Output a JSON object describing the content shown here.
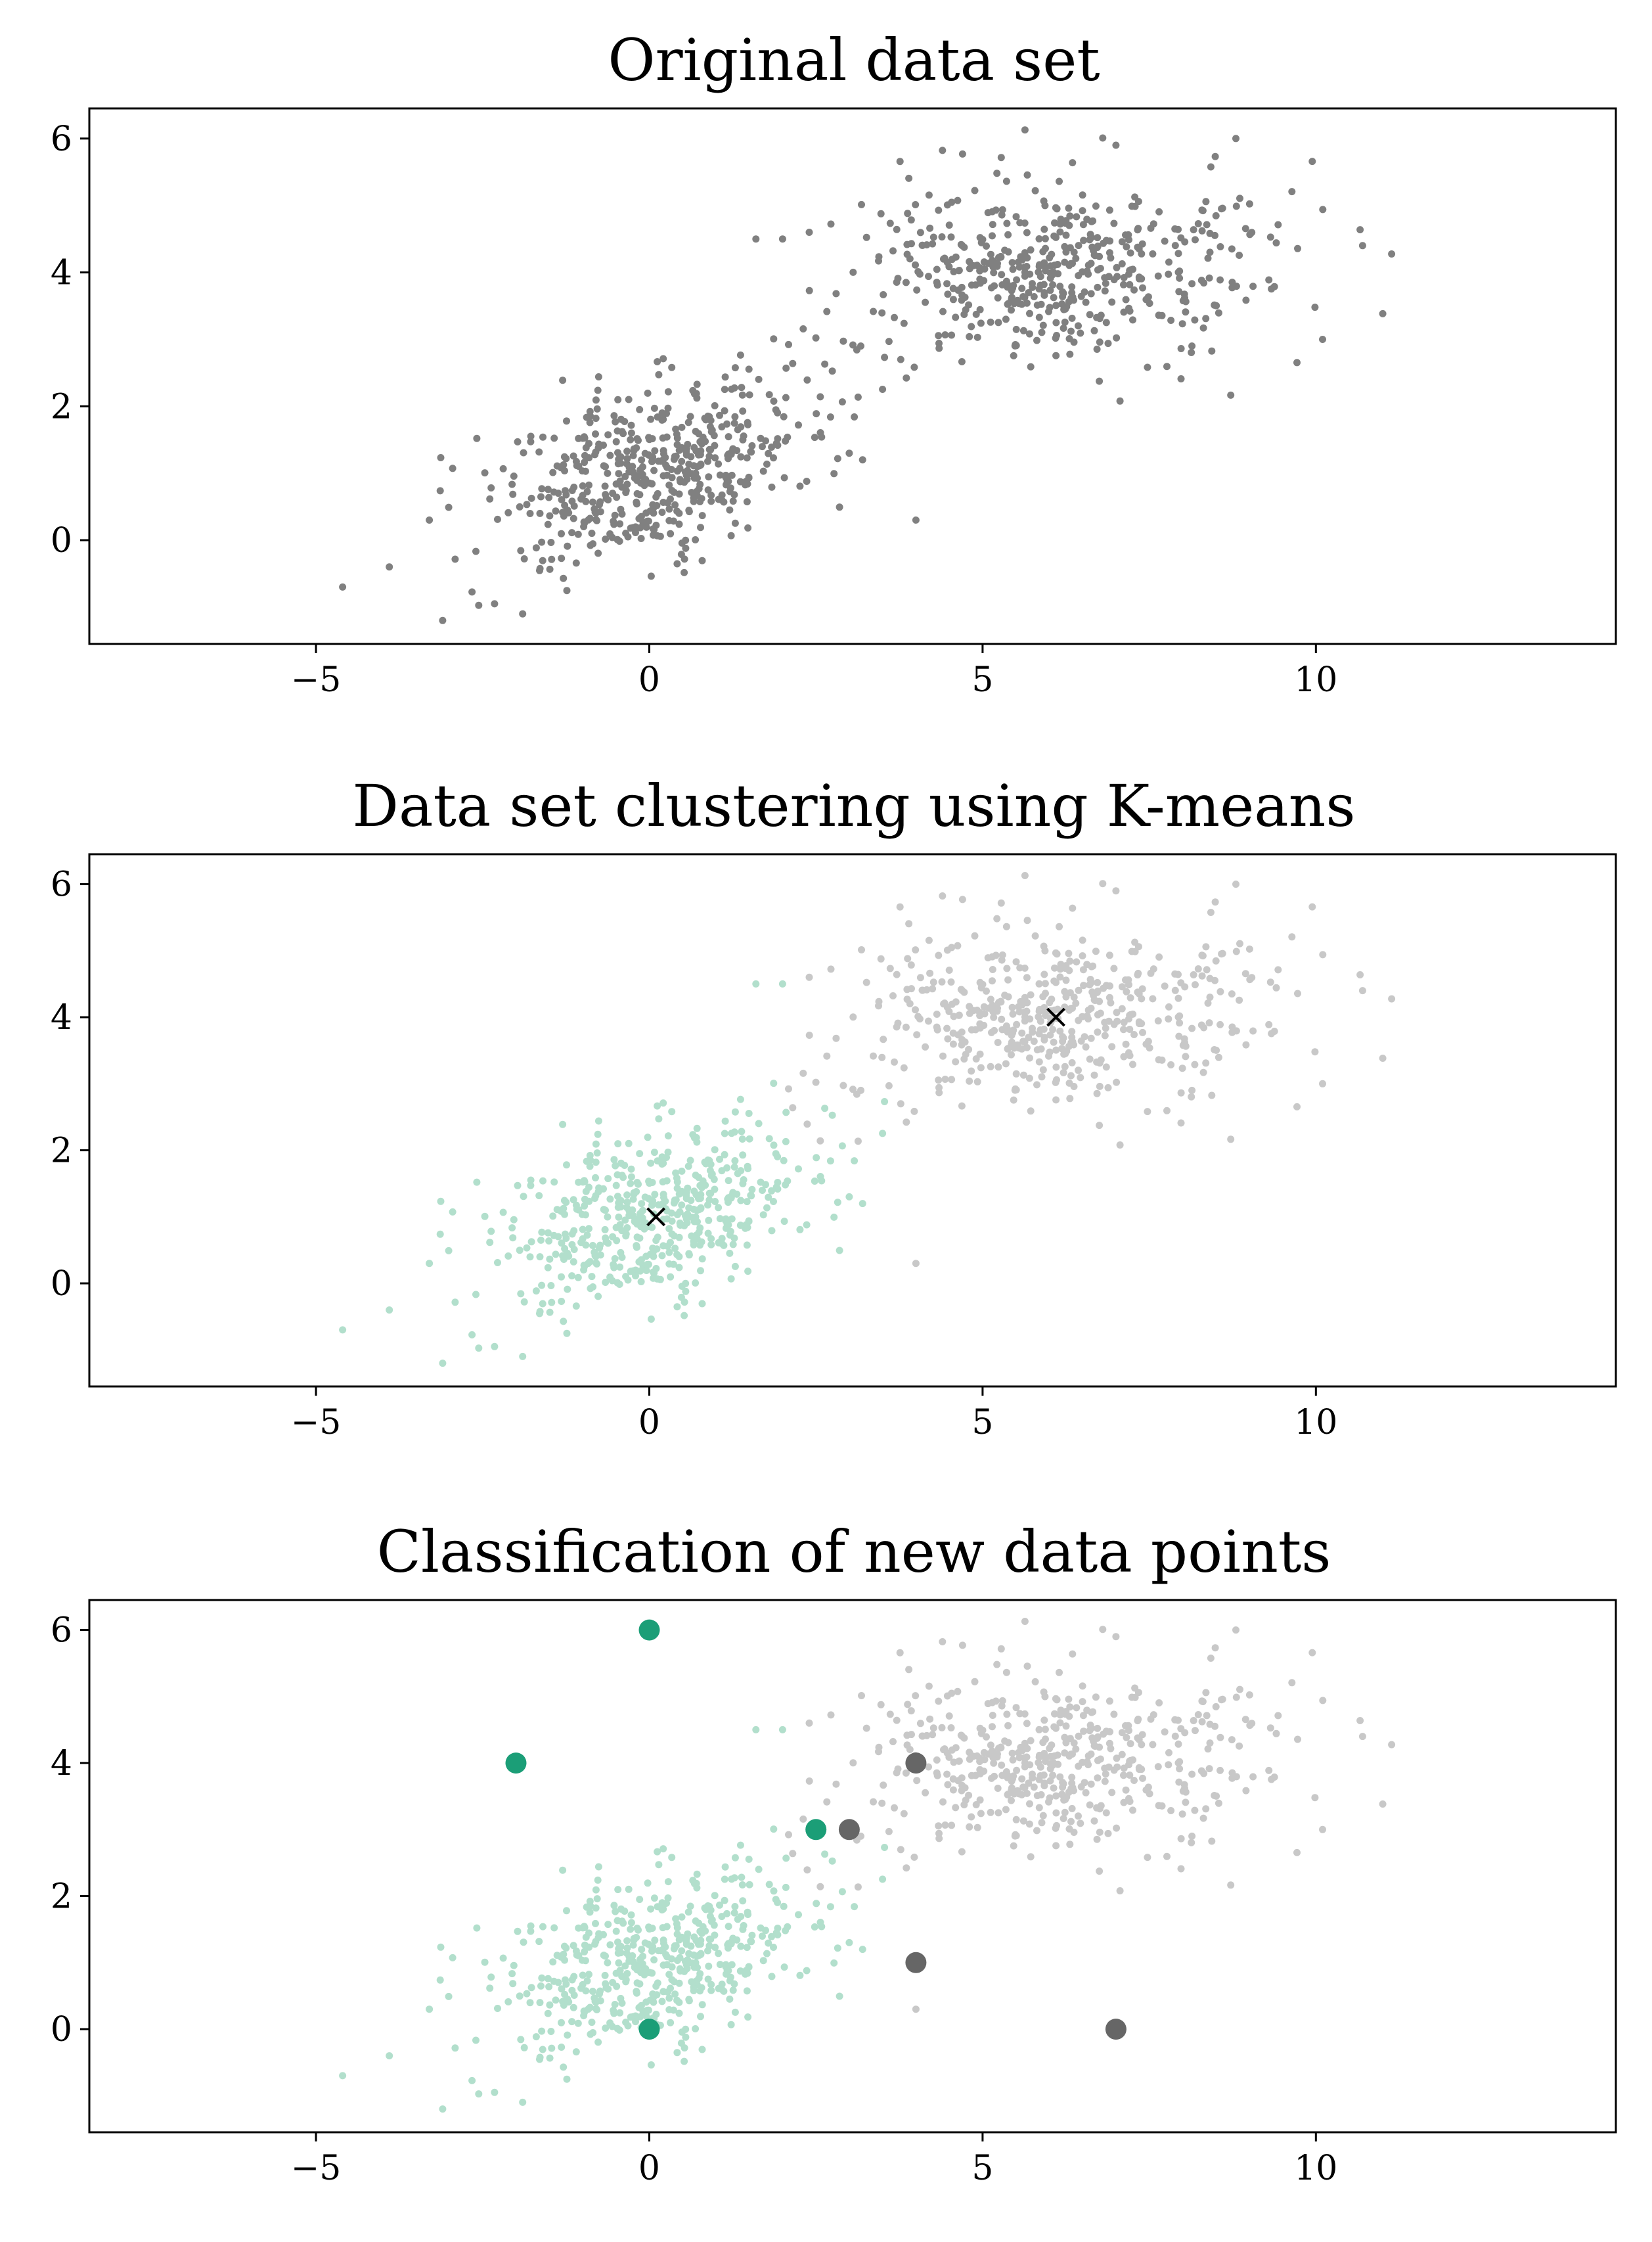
{
  "colors": {
    "original": "#808080",
    "cluster_a": "#b2dfcc",
    "cluster_b": "#c8c8c8",
    "new_a": "#1b9e77",
    "new_b": "#666666",
    "centroid": "#000000"
  },
  "chart_data": [
    {
      "type": "scatter",
      "title": "Original data set",
      "xlabel": "",
      "ylabel": "",
      "xlim": [
        -8.4,
        14.5
      ],
      "ylim": [
        -1.55,
        6.45
      ],
      "xticks": [
        -5,
        0,
        5,
        10
      ],
      "xtick_labels": [
        "−5",
        "0",
        "5",
        "10"
      ],
      "yticks": [
        0,
        2,
        4,
        6
      ],
      "ytick_labels": [
        "0",
        "2",
        "4",
        "6"
      ],
      "grid": false,
      "series": [
        {
          "role": "all-points",
          "color": "#808080",
          "clusters": [
            {
              "n": 500,
              "center": [
                0,
                1
              ],
              "std": [
                1.2,
                0.7
              ],
              "rho": 0.45
            },
            {
              "n": 500,
              "center": [
                6,
                4
              ],
              "std": [
                1.6,
                0.7
              ],
              "rho": 0.15
            }
          ],
          "points": [
            [
              -4.6,
              -0.7
            ],
            [
              -3.1,
              -1.2
            ],
            [
              -1.9,
              -1.1
            ],
            [
              -3.9,
              -0.4
            ],
            [
              10.7,
              4.4
            ],
            [
              10.1,
              3.0
            ],
            [
              8.8,
              6.0
            ],
            [
              7.0,
              5.9
            ],
            [
              2.4,
              4.6
            ],
            [
              2.0,
              4.5
            ],
            [
              1.6,
              4.5
            ],
            [
              3.2,
              1.2
            ],
            [
              3.0,
              1.3
            ],
            [
              4.0,
              0.3
            ],
            [
              -3.3,
              0.3
            ]
          ]
        }
      ]
    },
    {
      "type": "scatter",
      "title": "Data set clustering using K-means",
      "xlabel": "",
      "ylabel": "",
      "xlim": [
        -8.4,
        14.5
      ],
      "ylim": [
        -1.55,
        6.45
      ],
      "xticks": [
        -5,
        0,
        5,
        10
      ],
      "xtick_labels": [
        "−5",
        "0",
        "5",
        "10"
      ],
      "yticks": [
        0,
        2,
        4,
        6
      ],
      "ytick_labels": [
        "0",
        "2",
        "4",
        "6"
      ],
      "grid": false,
      "series": [
        {
          "role": "cluster-a",
          "color": "#b2dfcc",
          "clusters": [
            {
              "n": 500,
              "center": [
                0,
                1
              ],
              "std": [
                1.2,
                0.7
              ],
              "rho": 0.45
            }
          ],
          "points": [
            [
              -4.6,
              -0.7
            ],
            [
              -3.1,
              -1.2
            ],
            [
              -1.9,
              -1.1
            ],
            [
              -3.9,
              -0.4
            ],
            [
              1.6,
              4.5
            ],
            [
              2.0,
              4.5
            ],
            [
              3.2,
              1.2
            ],
            [
              3.0,
              1.3
            ],
            [
              -3.3,
              0.3
            ]
          ]
        },
        {
          "role": "cluster-b",
          "color": "#c8c8c8",
          "clusters": [
            {
              "n": 500,
              "center": [
                6,
                4
              ],
              "std": [
                1.6,
                0.7
              ],
              "rho": 0.15
            }
          ],
          "points": [
            [
              10.7,
              4.4
            ],
            [
              10.1,
              3.0
            ],
            [
              8.8,
              6.0
            ],
            [
              7.0,
              5.9
            ],
            [
              2.4,
              4.6
            ],
            [
              4.0,
              0.3
            ]
          ]
        },
        {
          "role": "centroids",
          "color": "#000000",
          "marker": "x",
          "points": [
            [
              0.1,
              1.0
            ],
            [
              6.1,
              4.0
            ]
          ]
        }
      ]
    },
    {
      "type": "scatter",
      "title": "Classification of new data points",
      "xlabel": "",
      "ylabel": "",
      "xlim": [
        -8.4,
        14.5
      ],
      "ylim": [
        -1.55,
        6.45
      ],
      "xticks": [
        -5,
        0,
        5,
        10
      ],
      "xtick_labels": [
        "−5",
        "0",
        "5",
        "10"
      ],
      "yticks": [
        0,
        2,
        4,
        6
      ],
      "ytick_labels": [
        "0",
        "2",
        "4",
        "6"
      ],
      "grid": false,
      "series": [
        {
          "role": "cluster-a",
          "color": "#b2dfcc",
          "clusters": [
            {
              "n": 500,
              "center": [
                0,
                1
              ],
              "std": [
                1.2,
                0.7
              ],
              "rho": 0.45
            }
          ],
          "points": [
            [
              -4.6,
              -0.7
            ],
            [
              -3.1,
              -1.2
            ],
            [
              -1.9,
              -1.1
            ],
            [
              -3.9,
              -0.4
            ],
            [
              1.6,
              4.5
            ],
            [
              2.0,
              4.5
            ],
            [
              3.2,
              1.2
            ],
            [
              3.0,
              1.3
            ],
            [
              -3.3,
              0.3
            ]
          ]
        },
        {
          "role": "cluster-b",
          "color": "#c8c8c8",
          "clusters": [
            {
              "n": 500,
              "center": [
                6,
                4
              ],
              "std": [
                1.6,
                0.7
              ],
              "rho": 0.15
            }
          ],
          "points": [
            [
              10.7,
              4.4
            ],
            [
              10.1,
              3.0
            ],
            [
              8.8,
              6.0
            ],
            [
              7.0,
              5.9
            ],
            [
              2.4,
              4.6
            ],
            [
              4.0,
              0.3
            ]
          ]
        },
        {
          "role": "new-points-class-a",
          "color": "#1b9e77",
          "marker": "large-dot",
          "points": [
            [
              0,
              6
            ],
            [
              -2,
              4
            ],
            [
              2.5,
              3
            ],
            [
              0,
              0
            ]
          ]
        },
        {
          "role": "new-points-class-b",
          "color": "#666666",
          "marker": "large-dot",
          "points": [
            [
              4,
              4
            ],
            [
              3,
              3
            ],
            [
              4,
              1
            ],
            [
              7,
              0
            ]
          ]
        }
      ]
    }
  ]
}
